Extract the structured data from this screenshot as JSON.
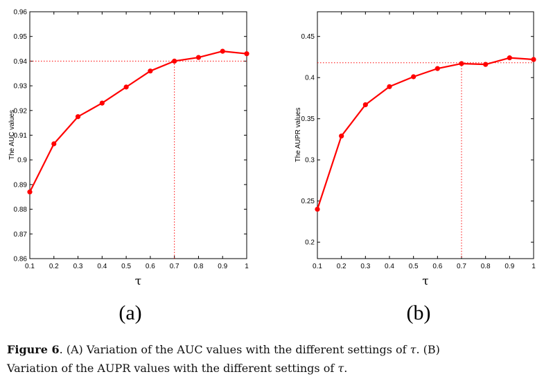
{
  "panels": [
    {
      "label": "(a)",
      "ylabel": "The AUC values",
      "xlabel": "τ",
      "xticks": [
        "0.1",
        "0.2",
        "0.3",
        "0.4",
        "0.5",
        "0.6",
        "0.7",
        "0.8",
        "0.9",
        "1"
      ],
      "yticks": [
        "0.86",
        "0.87",
        "0.88",
        "0.89",
        "0.9",
        "0.91",
        "0.92",
        "0.93",
        "0.94",
        "0.95",
        "0.96"
      ]
    },
    {
      "label": "(b)",
      "ylabel": "The AUPR values",
      "xlabel": "τ",
      "xticks": [
        "0.1",
        "0.2",
        "0.3",
        "0.4",
        "0.5",
        "0.6",
        "0.7",
        "0.8",
        "0.9",
        "1"
      ],
      "yticks": [
        "0.2",
        "0.25",
        "0.3",
        "0.35",
        "0.4",
        "0.45"
      ]
    }
  ],
  "caption": {
    "figure_label": "Figure 6",
    "line1_pre": ". (A) Variation of the AUC values with the different settings of ",
    "line1_post": ". (B)",
    "line2_pre": "Variation of the AUPR values with the different settings of ",
    "line2_post": ".",
    "symbol": "τ"
  },
  "chart_data": [
    {
      "type": "line",
      "x": [
        0.1,
        0.2,
        0.3,
        0.4,
        0.5,
        0.6,
        0.7,
        0.8,
        0.9,
        1.0
      ],
      "series": [
        {
          "values": [
            0.887,
            0.9065,
            0.9175,
            0.923,
            0.9295,
            0.936,
            0.94,
            0.9415,
            0.944,
            0.943
          ]
        }
      ],
      "reference": {
        "x": 0.7,
        "y": 0.94
      },
      "xlabel": "τ",
      "ylabel": "The AUC values",
      "xlim": [
        0.1,
        1.0
      ],
      "ylim": [
        0.86,
        0.96
      ],
      "grid": false,
      "color": "#ff0000"
    },
    {
      "type": "line",
      "x": [
        0.1,
        0.2,
        0.3,
        0.4,
        0.5,
        0.6,
        0.7,
        0.8,
        0.9,
        1.0
      ],
      "series": [
        {
          "values": [
            0.24,
            0.329,
            0.367,
            0.389,
            0.401,
            0.411,
            0.417,
            0.416,
            0.424,
            0.422
          ]
        }
      ],
      "reference": {
        "x": 0.7,
        "y": 0.418
      },
      "xlabel": "τ",
      "ylabel": "The AUPR values",
      "xlim": [
        0.1,
        1.0
      ],
      "ylim": [
        0.18,
        0.48
      ],
      "grid": false,
      "color": "#ff0000"
    }
  ]
}
